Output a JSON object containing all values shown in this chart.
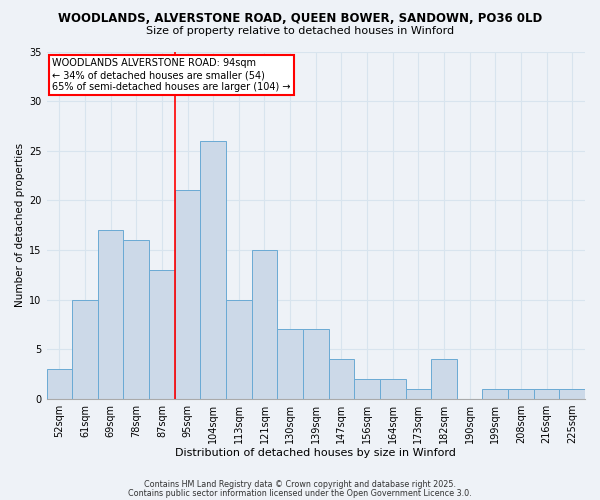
{
  "title_line1": "WOODLANDS, ALVERSTONE ROAD, QUEEN BOWER, SANDOWN, PO36 0LD",
  "title_line2": "Size of property relative to detached houses in Winford",
  "xlabel": "Distribution of detached houses by size in Winford",
  "ylabel": "Number of detached properties",
  "bar_labels": [
    "52sqm",
    "61sqm",
    "69sqm",
    "78sqm",
    "87sqm",
    "95sqm",
    "104sqm",
    "113sqm",
    "121sqm",
    "130sqm",
    "139sqm",
    "147sqm",
    "156sqm",
    "164sqm",
    "173sqm",
    "182sqm",
    "190sqm",
    "199sqm",
    "208sqm",
    "216sqm",
    "225sqm"
  ],
  "bar_values": [
    3,
    10,
    17,
    16,
    13,
    21,
    26,
    10,
    15,
    7,
    7,
    4,
    2,
    2,
    1,
    4,
    0,
    1,
    1,
    1,
    1
  ],
  "bar_color": "#ccd9e8",
  "bar_edge_color": "#6aaad4",
  "grid_color": "#d8e4ee",
  "red_line_index": 4.5,
  "annotation_text": "WOODLANDS ALVERSTONE ROAD: 94sqm\n← 34% of detached houses are smaller (54)\n65% of semi-detached houses are larger (104) →",
  "annotation_box_color": "white",
  "annotation_box_edge": "red",
  "footer_line1": "Contains HM Land Registry data © Crown copyright and database right 2025.",
  "footer_line2": "Contains public sector information licensed under the Open Government Licence 3.0.",
  "ylim": [
    0,
    35
  ],
  "yticks": [
    0,
    5,
    10,
    15,
    20,
    25,
    30,
    35
  ],
  "background_color": "#eef2f7",
  "title1_fontsize": 8.5,
  "title2_fontsize": 8.0,
  "xlabel_fontsize": 8.0,
  "ylabel_fontsize": 7.5,
  "tick_fontsize": 7.0,
  "ann_fontsize": 7.0,
  "footer_fontsize": 5.8
}
